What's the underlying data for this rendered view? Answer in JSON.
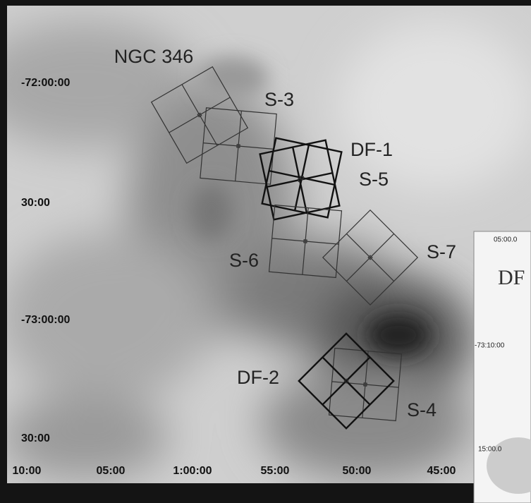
{
  "axes": {
    "y_labels": [
      "-72:00:00",
      "30:00",
      "-73:00:00",
      "30:00"
    ],
    "x_labels": [
      "10:00",
      "05:00",
      "1:00:00",
      "55:00",
      "50:00",
      "45:00"
    ]
  },
  "fields": [
    {
      "label": "NGC 346"
    },
    {
      "label": "S-3"
    },
    {
      "label": "DF-1"
    },
    {
      "label": "S-5"
    },
    {
      "label": "S-6"
    },
    {
      "label": "S-7"
    },
    {
      "label": "DF-2"
    },
    {
      "label": "S-4"
    }
  ],
  "inset": {
    "x_label": "05:00.0",
    "title": "DF",
    "y_labels": [
      "-73:10:00",
      "15:00.0"
    ]
  }
}
